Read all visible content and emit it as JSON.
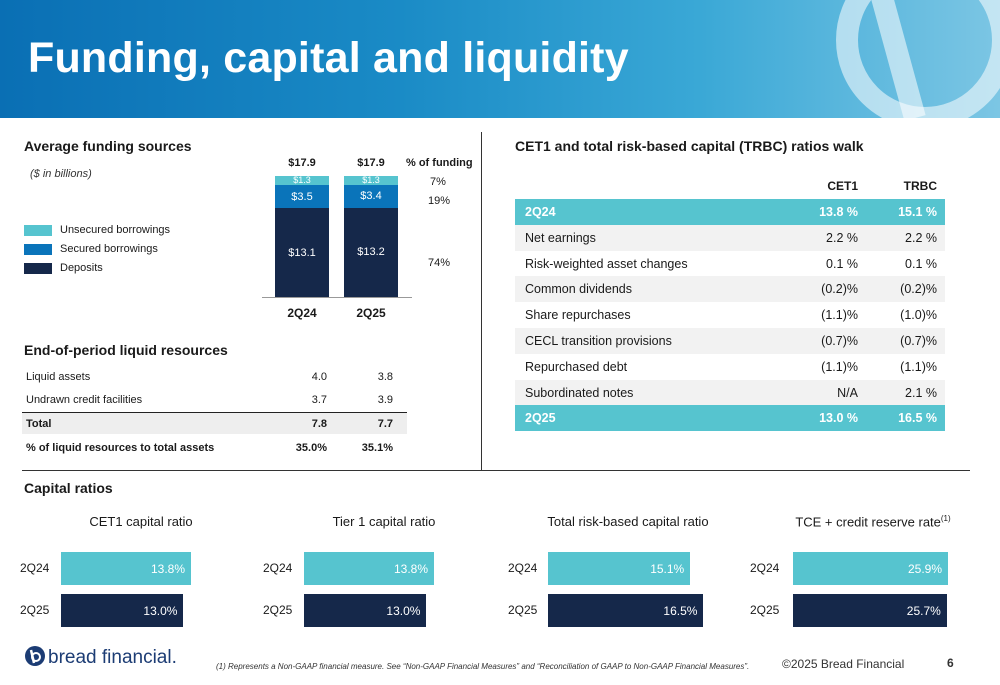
{
  "title": "Funding, capital and liquidity",
  "funding": {
    "title": "Average funding sources",
    "note": "($ in billions)",
    "legend": [
      "Unsecured borrowings",
      "Secured borrowings",
      "Deposits"
    ],
    "pct_header": "% of funding",
    "pct_values": [
      "7%",
      "19%",
      "74%"
    ]
  },
  "chart_data": {
    "type": "bar",
    "stacked": true,
    "title": "Average funding sources",
    "categories": [
      "2Q24",
      "2Q25"
    ],
    "totals": [
      "$17.9",
      "$17.9"
    ],
    "series": [
      {
        "name": "Deposits",
        "values": [
          13.1,
          13.2
        ],
        "labels": [
          "$13.1",
          "$13.2"
        ],
        "color": "#15284a"
      },
      {
        "name": "Secured borrowings",
        "values": [
          3.5,
          3.4
        ],
        "labels": [
          "$3.5",
          "$3.4"
        ],
        "color": "#0a74ba"
      },
      {
        "name": "Unsecured borrowings",
        "values": [
          1.3,
          1.3
        ],
        "labels": [
          "$1.3",
          "$1.3"
        ],
        "color": "#56c4cf"
      }
    ],
    "ylabel": "($ in billions)",
    "ylim": [
      0,
      17.9
    ]
  },
  "liquid": {
    "title": "End-of-period liquid resources",
    "rows": [
      {
        "label": "Liquid assets",
        "v1": "4.0",
        "v2": "3.8"
      },
      {
        "label": "Undrawn credit facilities",
        "v1": "3.7",
        "v2": "3.9"
      },
      {
        "label": "Total",
        "v1": "7.8",
        "v2": "7.7"
      },
      {
        "label": "% of liquid resources to total assets",
        "v1": "35.0%",
        "v2": "35.1%"
      }
    ]
  },
  "walk": {
    "title": "CET1 and total risk-based capital (TRBC) ratios walk",
    "col1": "CET1",
    "col2": "TRBC",
    "rows": [
      {
        "label": "2Q24",
        "c1": "13.8 %",
        "c2": "15.1 %"
      },
      {
        "label": "Net earnings",
        "c1": "2.2 %",
        "c2": "2.2 %"
      },
      {
        "label": "Risk-weighted asset changes",
        "c1": "0.1 %",
        "c2": "0.1 %"
      },
      {
        "label": "Common dividends",
        "c1": "(0.2)%",
        "c2": "(0.2)%"
      },
      {
        "label": "Share repurchases",
        "c1": "(1.1)%",
        "c2": "(1.0)%"
      },
      {
        "label": "CECL transition provisions",
        "c1": "(0.7)%",
        "c2": "(0.7)%"
      },
      {
        "label": "Repurchased debt",
        "c1": "(1.1)%",
        "c2": "(1.1)%"
      },
      {
        "label": "Subordinated notes",
        "c1": "N/A",
        "c2": "2.1 %"
      },
      {
        "label": "2Q25",
        "c1": "13.0 %",
        "c2": "16.5 %"
      }
    ]
  },
  "capital": {
    "title": "Capital ratios",
    "charts": [
      {
        "title": "CET1 capital ratio",
        "rows": [
          {
            "label": "2Q24",
            "value": 13.8,
            "text": "13.8%"
          },
          {
            "label": "2Q25",
            "value": 13.0,
            "text": "13.0%"
          }
        ]
      },
      {
        "title": "Tier 1 capital ratio",
        "rows": [
          {
            "label": "2Q24",
            "value": 13.8,
            "text": "13.8%"
          },
          {
            "label": "2Q25",
            "value": 13.0,
            "text": "13.0%"
          }
        ]
      },
      {
        "title": "Total risk-based capital ratio",
        "rows": [
          {
            "label": "2Q24",
            "value": 15.1,
            "text": "15.1%"
          },
          {
            "label": "2Q25",
            "value": 16.5,
            "text": "16.5%"
          }
        ]
      },
      {
        "title": "TCE + credit reserve rate",
        "superscript": "(1)",
        "rows": [
          {
            "label": "2Q24",
            "value": 25.9,
            "text": "25.9%"
          },
          {
            "label": "2Q25",
            "value": 25.7,
            "text": "25.7%"
          }
        ]
      }
    ]
  },
  "footer": {
    "logo": "bread financial.",
    "note": "(1) Represents a Non-GAAP financial measure. See “Non-GAAP Financial Measures” and “Reconciliation of GAAP to Non-GAAP Financial Measures”.",
    "copyright": "©2025 Bread Financial",
    "page": "6"
  }
}
